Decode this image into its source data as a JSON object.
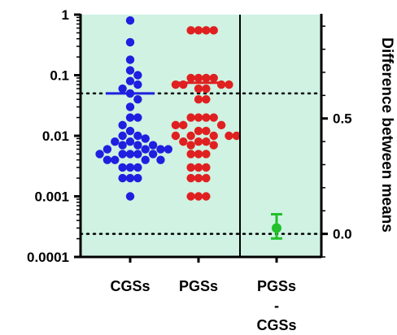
{
  "chart_data": {
    "type": "scatter",
    "background_color": "#cff2e2",
    "left_axis": {
      "scale": "log",
      "ylim": [
        0.0001,
        1
      ],
      "tick_labels": [
        "0.0001",
        "0.001",
        "0.01",
        "0.1",
        "1"
      ]
    },
    "right_axis": {
      "label": "Difference between means",
      "ylim": [
        -0.1,
        0.95
      ],
      "tick_labels": [
        "0.0",
        "0.5"
      ]
    },
    "categories": [
      "CGSs",
      "PGSs",
      "PGSs\n-\nCGSs"
    ],
    "category_label_lines": {
      "cgss": "CGSs",
      "pgss": "PGSs",
      "diff_1": "PGSs",
      "diff_2": "-",
      "diff_3": "CGSs"
    },
    "reference_lines": {
      "left_axis_value": 0.05,
      "right_axis_value": 0.0,
      "style": "dotted"
    },
    "series": [
      {
        "name": "CGSs",
        "color": "#1f1fe0",
        "mean": 0.05,
        "values": [
          0.8,
          0.35,
          0.18,
          0.12,
          0.1,
          0.08,
          0.07,
          0.06,
          0.05,
          0.04,
          0.03,
          0.02,
          0.02,
          0.015,
          0.012,
          0.01,
          0.01,
          0.009,
          0.008,
          0.008,
          0.007,
          0.007,
          0.007,
          0.006,
          0.006,
          0.006,
          0.006,
          0.005,
          0.005,
          0.005,
          0.005,
          0.005,
          0.004,
          0.004,
          0.004,
          0.004,
          0.003,
          0.003,
          0.003,
          0.002,
          0.002,
          0.002,
          0.001
        ]
      },
      {
        "name": "PGSs",
        "color": "#e02020",
        "mean": 0.075,
        "values": [
          0.55,
          0.55,
          0.55,
          0.55,
          0.09,
          0.09,
          0.09,
          0.09,
          0.07,
          0.07,
          0.07,
          0.07,
          0.06,
          0.06,
          0.04,
          0.04,
          0.02,
          0.02,
          0.02,
          0.02,
          0.015,
          0.015,
          0.015,
          0.012,
          0.012,
          0.01,
          0.01,
          0.01,
          0.01,
          0.01,
          0.008,
          0.008,
          0.008,
          0.007,
          0.007,
          0.005,
          0.005,
          0.005,
          0.003,
          0.003,
          0.003,
          0.002,
          0.002,
          0.002,
          0.001,
          0.001,
          0.001
        ]
      },
      {
        "name": "PGSs - CGSs",
        "color": "#22c02a",
        "mean": 0.025,
        "ci": [
          -0.02,
          0.085
        ],
        "axis": "right"
      }
    ]
  }
}
